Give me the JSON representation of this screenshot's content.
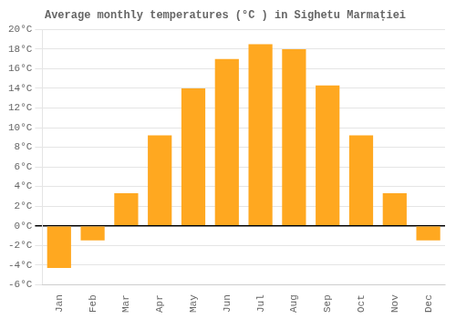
{
  "chart_data": {
    "type": "bar",
    "title": "Average monthly temperatures (°C ) in Sighetu Marmației",
    "categories": [
      "Jan",
      "Feb",
      "Mar",
      "Apr",
      "May",
      "Jun",
      "Jul",
      "Aug",
      "Sep",
      "Oct",
      "Nov",
      "Dec"
    ],
    "values": [
      -4.3,
      -1.5,
      3.3,
      9.2,
      14.0,
      17.0,
      18.5,
      18.0,
      14.3,
      9.2,
      3.3,
      -1.5
    ],
    "color": "#FFA820",
    "ylim": [
      -6,
      20
    ],
    "yticks": [
      {
        "value": -6,
        "label": "-6°C"
      },
      {
        "value": -4,
        "label": "-4°C"
      },
      {
        "value": -2,
        "label": "-2°C"
      },
      {
        "value": 0,
        "label": "0°C"
      },
      {
        "value": 2,
        "label": "2°C"
      },
      {
        "value": 4,
        "label": "4°C"
      },
      {
        "value": 6,
        "label": "6°C"
      },
      {
        "value": 8,
        "label": "8°C"
      },
      {
        "value": 10,
        "label": "10°C"
      },
      {
        "value": 12,
        "label": "12°C"
      },
      {
        "value": 14,
        "label": "14°C"
      },
      {
        "value": 16,
        "label": "16°C"
      },
      {
        "value": 18,
        "label": "18°C"
      },
      {
        "value": 20,
        "label": "20°C"
      }
    ],
    "grid": true
  }
}
